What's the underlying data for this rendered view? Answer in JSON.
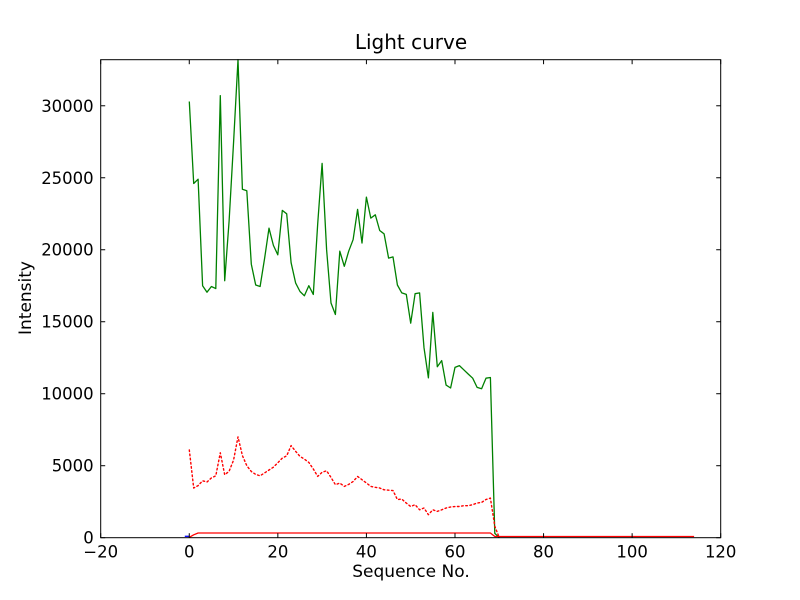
{
  "figure": {
    "title": "Light curve",
    "xlabel": "Sequence No.",
    "ylabel": "Intensity"
  },
  "chart_data": {
    "type": "line",
    "title": "Light curve",
    "xlabel": "Sequence No.",
    "ylabel": "Intensity",
    "xlim": [
      -20,
      120
    ],
    "ylim": [
      0,
      33200
    ],
    "x_ticks": [
      -20,
      0,
      20,
      40,
      60,
      80,
      100,
      120
    ],
    "x_tick_labels": [
      "−20",
      "0",
      "20",
      "40",
      "60",
      "80",
      "100",
      "120"
    ],
    "y_ticks": [
      0,
      5000,
      10000,
      15000,
      20000,
      25000,
      30000
    ],
    "y_tick_labels": [
      "0",
      "5000",
      "10000",
      "15000",
      "20000",
      "25000",
      "30000"
    ],
    "grid": false,
    "legend": null,
    "frame_color": "#000000",
    "series": [
      {
        "name": "green-line",
        "color": "#008000",
        "style": "solid",
        "x_start": 0,
        "x_step": 1,
        "values": [
          30300,
          24600,
          24900,
          17500,
          17050,
          17450,
          17300,
          30700,
          17850,
          22000,
          27500,
          33200,
          24200,
          24100,
          19000,
          17550,
          17450,
          19400,
          21500,
          20300,
          19650,
          22730,
          22500,
          19100,
          17700,
          17100,
          16800,
          17500,
          16900,
          21800,
          26000,
          20000,
          16300,
          15500,
          19900,
          18850,
          19900,
          20700,
          22800,
          20460,
          23660,
          22200,
          22430,
          21340,
          21100,
          19420,
          19500,
          17550,
          17000,
          16900,
          14900,
          16950,
          17000,
          13200,
          11100,
          15650,
          11880,
          12300,
          10600,
          10400,
          11830,
          11950,
          11660,
          11360,
          11080,
          10440,
          10350,
          11080,
          11130,
          300,
          0
        ]
      },
      {
        "name": "red-dotted-line",
        "color": "#ff0000",
        "style": "dotted",
        "x_start": 0,
        "x_step": 1,
        "values": [
          6100,
          3450,
          3620,
          3950,
          3870,
          4150,
          4300,
          5900,
          4370,
          4610,
          5400,
          7000,
          5700,
          5000,
          4600,
          4400,
          4300,
          4500,
          4700,
          4900,
          5200,
          5530,
          5690,
          6400,
          6000,
          5650,
          5460,
          5230,
          4770,
          4260,
          4540,
          4650,
          4190,
          3680,
          3790,
          3560,
          3700,
          3900,
          4250,
          4030,
          3800,
          3560,
          3500,
          3450,
          3330,
          3300,
          3270,
          2650,
          2680,
          2400,
          2170,
          2290,
          1940,
          2060,
          1600,
          1940,
          1830,
          1940,
          2060,
          2130,
          2170,
          2170,
          2220,
          2220,
          2290,
          2410,
          2450,
          2650,
          2750,
          800,
          0
        ]
      },
      {
        "name": "red-line",
        "color": "#ff0000",
        "style": "solid",
        "x": [
          0,
          1,
          2,
          68,
          69,
          114
        ],
        "values": [
          30,
          200,
          326,
          326,
          80,
          80
        ]
      },
      {
        "name": "blue-line",
        "color": "#0000ff",
        "style": "solid",
        "x": [
          -1,
          0
        ],
        "values": [
          100,
          100
        ]
      }
    ]
  }
}
